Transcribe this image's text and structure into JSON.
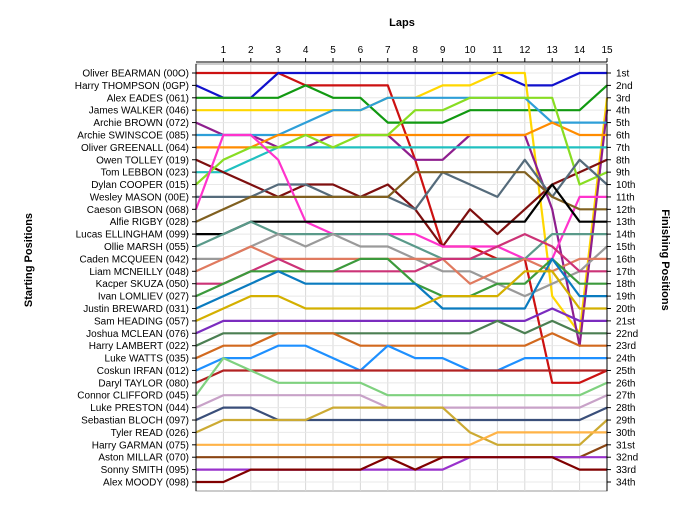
{
  "chart_data": {
    "type": "line",
    "title": "",
    "xlabel": "Laps",
    "ylabel_left": "Starting Positions",
    "ylabel_right": "Finishing Positions",
    "x": [
      0,
      1,
      2,
      3,
      4,
      5,
      6,
      7,
      8,
      9,
      10,
      11,
      12,
      13,
      14,
      15
    ],
    "x_tick_labels": [
      "1",
      "2",
      "3",
      "4",
      "5",
      "6",
      "7",
      "8",
      "9",
      "10",
      "11",
      "12",
      "13",
      "14",
      "15"
    ],
    "grid": true,
    "y_range": [
      1,
      34
    ],
    "starting_grid": [
      "Oliver BEARMAN (00O)",
      "Harry THOMPSON (0GP)",
      "Alex EADES (061)",
      "James WALKER (046)",
      "Archie BROWN (072)",
      "Archie SWINSCOE (085)",
      "Oliver GREENALL (064)",
      "Owen TOLLEY (019)",
      "Tom LEBBON (023)",
      "Dylan COOPER (015)",
      "Wesley MASON (00E)",
      "Caeson GIBSON (068)",
      "Alfie RIGBY (028)",
      "Lucas ELLINGHAM (099)",
      "Ollie MARSH (055)",
      "Caden MCQUEEN (042)",
      "Liam MCNEILLY (048)",
      "Kacper SKUZA (050)",
      "Ivan LOMLIEV (027)",
      "Justin BREWARD (031)",
      "Sam HEADING (057)",
      "Joshua MCLEAN (076)",
      "Harry LAMBERT (022)",
      "Luke WATTS (035)",
      "Coskun IRFAN (012)",
      "Daryl TAYLOR (080)",
      "Connor CLIFFORD (045)",
      "Luke PRESTON (044)",
      "Sebastian BLOCH (097)",
      "Tyler READ (026)",
      "Harry GARMAN (075)",
      "Aston MILLAR (070)",
      "Sonny SMITH (095)",
      "Alex MOODY (098)"
    ],
    "finishing_labels": [
      "1st",
      "2nd",
      "3rd",
      "4th",
      "5th",
      "6th",
      "7th",
      "8th",
      "9th",
      "10th",
      "11th",
      "12th",
      "13th",
      "14th",
      "15th",
      "16th",
      "17th",
      "18th",
      "19th",
      "20th",
      "21st",
      "22nd",
      "23rd",
      "24th",
      "25th",
      "26th",
      "27th",
      "28th",
      "29th",
      "30th",
      "31st",
      "32nd",
      "33rd",
      "34th"
    ],
    "series": [
      {
        "color": "#cc1111",
        "values": [
          1,
          1,
          1,
          1,
          2,
          2,
          2,
          2,
          8,
          15,
          15,
          16,
          16,
          26,
          26,
          25
        ]
      },
      {
        "color": "#1111cc",
        "values": [
          2,
          3,
          3,
          1,
          1,
          1,
          1,
          1,
          1,
          1,
          1,
          1,
          2,
          2,
          1,
          1
        ]
      },
      {
        "color": "#119911",
        "values": [
          3,
          3,
          3,
          3,
          2,
          3,
          3,
          5,
          5,
          5,
          4,
          4,
          4,
          4,
          4,
          2
        ]
      },
      {
        "color": "#ffd700",
        "values": [
          4,
          4,
          4,
          4,
          4,
          4,
          4,
          3,
          3,
          2,
          2,
          1,
          1,
          19,
          22,
          3
        ]
      },
      {
        "color": "#8e1e8e",
        "values": [
          5,
          6,
          6,
          7,
          7,
          6,
          6,
          6,
          8,
          8,
          6,
          6,
          6,
          12,
          23,
          4
        ]
      },
      {
        "color": "#2e9fd8",
        "values": [
          6,
          6,
          6,
          6,
          5,
          4,
          4,
          3,
          3,
          3,
          3,
          3,
          3,
          5,
          5,
          5
        ]
      },
      {
        "color": "#ff8c00",
        "values": [
          7,
          7,
          7,
          6,
          6,
          6,
          6,
          6,
          6,
          6,
          6,
          6,
          6,
          5,
          6,
          6
        ]
      },
      {
        "color": "#20c0c0",
        "values": [
          9,
          9,
          8,
          7,
          7,
          7,
          7,
          7,
          7,
          7,
          7,
          7,
          7,
          7,
          7,
          7
        ]
      },
      {
        "color": "#7e0f0f",
        "values": [
          8,
          9,
          10,
          11,
          10,
          10,
          11,
          10,
          12,
          15,
          12,
          14,
          12,
          10,
          9,
          8
        ]
      },
      {
        "color": "#88dd22",
        "values": [
          10,
          8,
          7,
          7,
          6,
          7,
          6,
          6,
          4,
          4,
          3,
          3,
          3,
          3,
          10,
          9
        ]
      },
      {
        "color": "#556b7b",
        "values": [
          11,
          11,
          11,
          10,
          10,
          11,
          11,
          11,
          12,
          9,
          10,
          11,
          8,
          11,
          8,
          10
        ]
      },
      {
        "color": "#ff33cc",
        "values": [
          12,
          6,
          6,
          8,
          13,
          14,
          14,
          14,
          14,
          15,
          15,
          15,
          16,
          16,
          11,
          11
        ]
      },
      {
        "color": "#806020",
        "values": [
          13,
          12,
          11,
          11,
          11,
          11,
          11,
          11,
          9,
          9,
          9,
          9,
          9,
          11,
          12,
          12
        ]
      },
      {
        "color": "#000000",
        "values": [
          14,
          14,
          13,
          13,
          13,
          13,
          13,
          13,
          13,
          13,
          13,
          13,
          13,
          10,
          13,
          13
        ]
      },
      {
        "color": "#5a9a8a",
        "values": [
          15,
          14,
          13,
          14,
          14,
          14,
          14,
          14,
          15,
          16,
          16,
          16,
          16,
          14,
          14,
          14
        ]
      },
      {
        "color": "#9a9a9a",
        "values": [
          16,
          16,
          15,
          14,
          15,
          14,
          15,
          15,
          16,
          17,
          17,
          18,
          19,
          18,
          17,
          15
        ]
      },
      {
        "color": "#e07a5f",
        "values": [
          17,
          16,
          15,
          16,
          16,
          16,
          16,
          16,
          16,
          16,
          18,
          17,
          16,
          17,
          16,
          16
        ]
      },
      {
        "color": "#cc3377",
        "values": [
          18,
          18,
          17,
          16,
          17,
          17,
          17,
          17,
          17,
          16,
          16,
          15,
          14,
          15,
          17,
          17
        ]
      },
      {
        "color": "#3c9a3c",
        "values": [
          19,
          18,
          17,
          17,
          17,
          17,
          16,
          16,
          18,
          19,
          19,
          18,
          18,
          16,
          18,
          18
        ]
      },
      {
        "color": "#0a7bbf",
        "values": [
          20,
          19,
          18,
          17,
          18,
          18,
          18,
          18,
          18,
          20,
          20,
          20,
          20,
          16,
          19,
          19
        ]
      },
      {
        "color": "#d4b000",
        "values": [
          21,
          20,
          19,
          19,
          20,
          20,
          20,
          20,
          20,
          19,
          19,
          19,
          17,
          17,
          20,
          20
        ]
      },
      {
        "color": "#7b2cbf",
        "values": [
          22,
          21,
          21,
          21,
          21,
          21,
          21,
          21,
          21,
          21,
          21,
          21,
          21,
          20,
          21,
          21
        ]
      },
      {
        "color": "#4b7f52",
        "values": [
          23,
          22,
          22,
          22,
          22,
          22,
          22,
          22,
          22,
          22,
          22,
          21,
          22,
          21,
          22,
          22
        ]
      },
      {
        "color": "#d2691e",
        "values": [
          24,
          23,
          23,
          22,
          22,
          22,
          23,
          23,
          23,
          23,
          23,
          23,
          23,
          22,
          23,
          23
        ]
      },
      {
        "color": "#1e90ff",
        "values": [
          25,
          24,
          24,
          23,
          23,
          24,
          25,
          23,
          24,
          24,
          25,
          25,
          24,
          24,
          24,
          24
        ]
      },
      {
        "color": "#b22222",
        "values": [
          26,
          25,
          25,
          25,
          25,
          25,
          25,
          25,
          25,
          25,
          25,
          25,
          25,
          25,
          25,
          25
        ]
      },
      {
        "color": "#7fd17f",
        "values": [
          27,
          24,
          25,
          26,
          26,
          26,
          26,
          27,
          27,
          27,
          27,
          27,
          27,
          27,
          27,
          26
        ]
      },
      {
        "color": "#c8a2c8",
        "values": [
          28,
          27,
          27,
          27,
          27,
          27,
          27,
          28,
          28,
          28,
          28,
          28,
          28,
          28,
          28,
          27
        ]
      },
      {
        "color": "#3a4f7a",
        "values": [
          29,
          28,
          28,
          29,
          29,
          29,
          29,
          29,
          29,
          29,
          29,
          29,
          29,
          29,
          29,
          28
        ]
      },
      {
        "color": "#ccaa33",
        "values": [
          30,
          29,
          29,
          29,
          29,
          28,
          28,
          28,
          28,
          28,
          30,
          31,
          31,
          31,
          31,
          29
        ]
      },
      {
        "color": "#ffb347",
        "values": [
          31,
          31,
          31,
          31,
          31,
          31,
          31,
          31,
          31,
          31,
          31,
          30,
          30,
          30,
          30,
          30
        ]
      },
      {
        "color": "#8b4513",
        "values": [
          32,
          32,
          32,
          32,
          32,
          32,
          32,
          32,
          32,
          32,
          32,
          32,
          32,
          32,
          32,
          31
        ]
      },
      {
        "color": "#9932cc",
        "values": [
          33,
          33,
          33,
          33,
          33,
          33,
          33,
          33,
          33,
          33,
          32,
          32,
          32,
          32,
          32,
          32
        ]
      },
      {
        "color": "#800000",
        "values": [
          34,
          34,
          33,
          33,
          33,
          33,
          33,
          32,
          33,
          32,
          32,
          32,
          32,
          32,
          33,
          33
        ]
      }
    ]
  }
}
